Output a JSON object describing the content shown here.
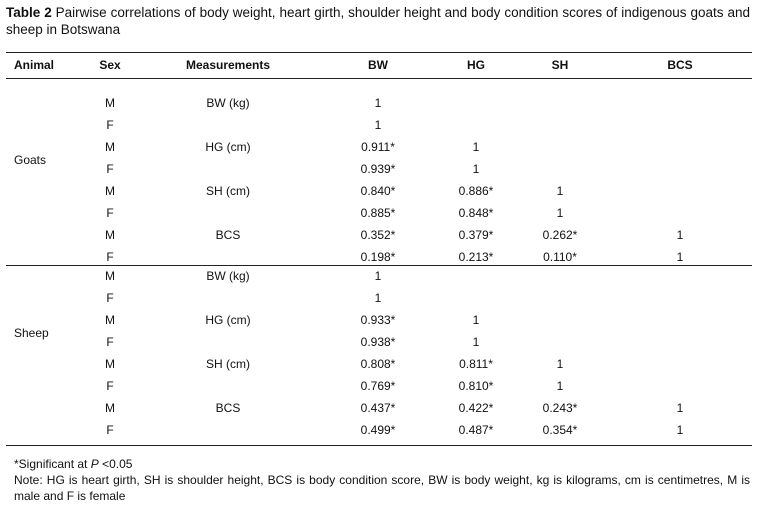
{
  "title": {
    "label": "Table 2",
    "text": "Pairwise correlations of body weight, heart girth, shoulder height and body condition scores of indigenous goats and sheep in Botswana"
  },
  "table": {
    "columns": [
      "Animal",
      "Sex",
      "Measurements",
      "BW",
      "HG",
      "SH",
      "BCS"
    ],
    "groups": [
      {
        "animal": "Goats",
        "rows": [
          {
            "sex": "M",
            "measurement": "BW (kg)",
            "values": [
              "1"
            ]
          },
          {
            "sex": "F",
            "values": [
              "1"
            ]
          },
          {
            "sex": "M",
            "measurement": "HG (cm)",
            "values": [
              "0.911*",
              "1"
            ]
          },
          {
            "sex": "F",
            "values": [
              "0.939*",
              "1"
            ]
          },
          {
            "sex": "M",
            "measurement": "SH (cm)",
            "values": [
              "0.840*",
              "0.886*",
              "1"
            ]
          },
          {
            "sex": "F",
            "values": [
              "0.885*",
              "0.848*",
              "1"
            ]
          },
          {
            "sex": "M",
            "measurement": "BCS",
            "values": [
              "0.352*",
              "0.379*",
              "0.262*",
              "1"
            ]
          },
          {
            "sex": "F",
            "values": [
              "0.198*",
              "0.213*",
              "0.110*",
              "1"
            ]
          }
        ]
      },
      {
        "animal": "Sheep",
        "rows": [
          {
            "sex": "M",
            "measurement": "BW (kg)",
            "values": [
              "1"
            ]
          },
          {
            "sex": "F",
            "values": [
              "1"
            ]
          },
          {
            "sex": "M",
            "measurement": "HG (cm)",
            "values": [
              "0.933*",
              "1"
            ]
          },
          {
            "sex": "F",
            "values": [
              "0.938*",
              "1"
            ]
          },
          {
            "sex": "M",
            "measurement": "SH (cm)",
            "values": [
              "0.808*",
              "0.811*",
              "1"
            ]
          },
          {
            "sex": "F",
            "values": [
              "0.769*",
              "0.810*",
              "1"
            ]
          },
          {
            "sex": "M",
            "measurement": "BCS",
            "values": [
              "0.437*",
              "0.422*",
              "0.243*",
              "1"
            ]
          },
          {
            "sex": "F",
            "values": [
              "0.499*",
              "0.487*",
              "0.354*",
              "1"
            ]
          }
        ]
      }
    ]
  },
  "footnote": {
    "prefix": "*Significant at",
    "symbol": "P",
    "suffix": "<0.05"
  },
  "note": "Note: HG is heart girth, SH is shoulder height, BCS is body condition score, BW is body weight, kg is kilograms, cm is centimetres, M is male and F is female"
}
